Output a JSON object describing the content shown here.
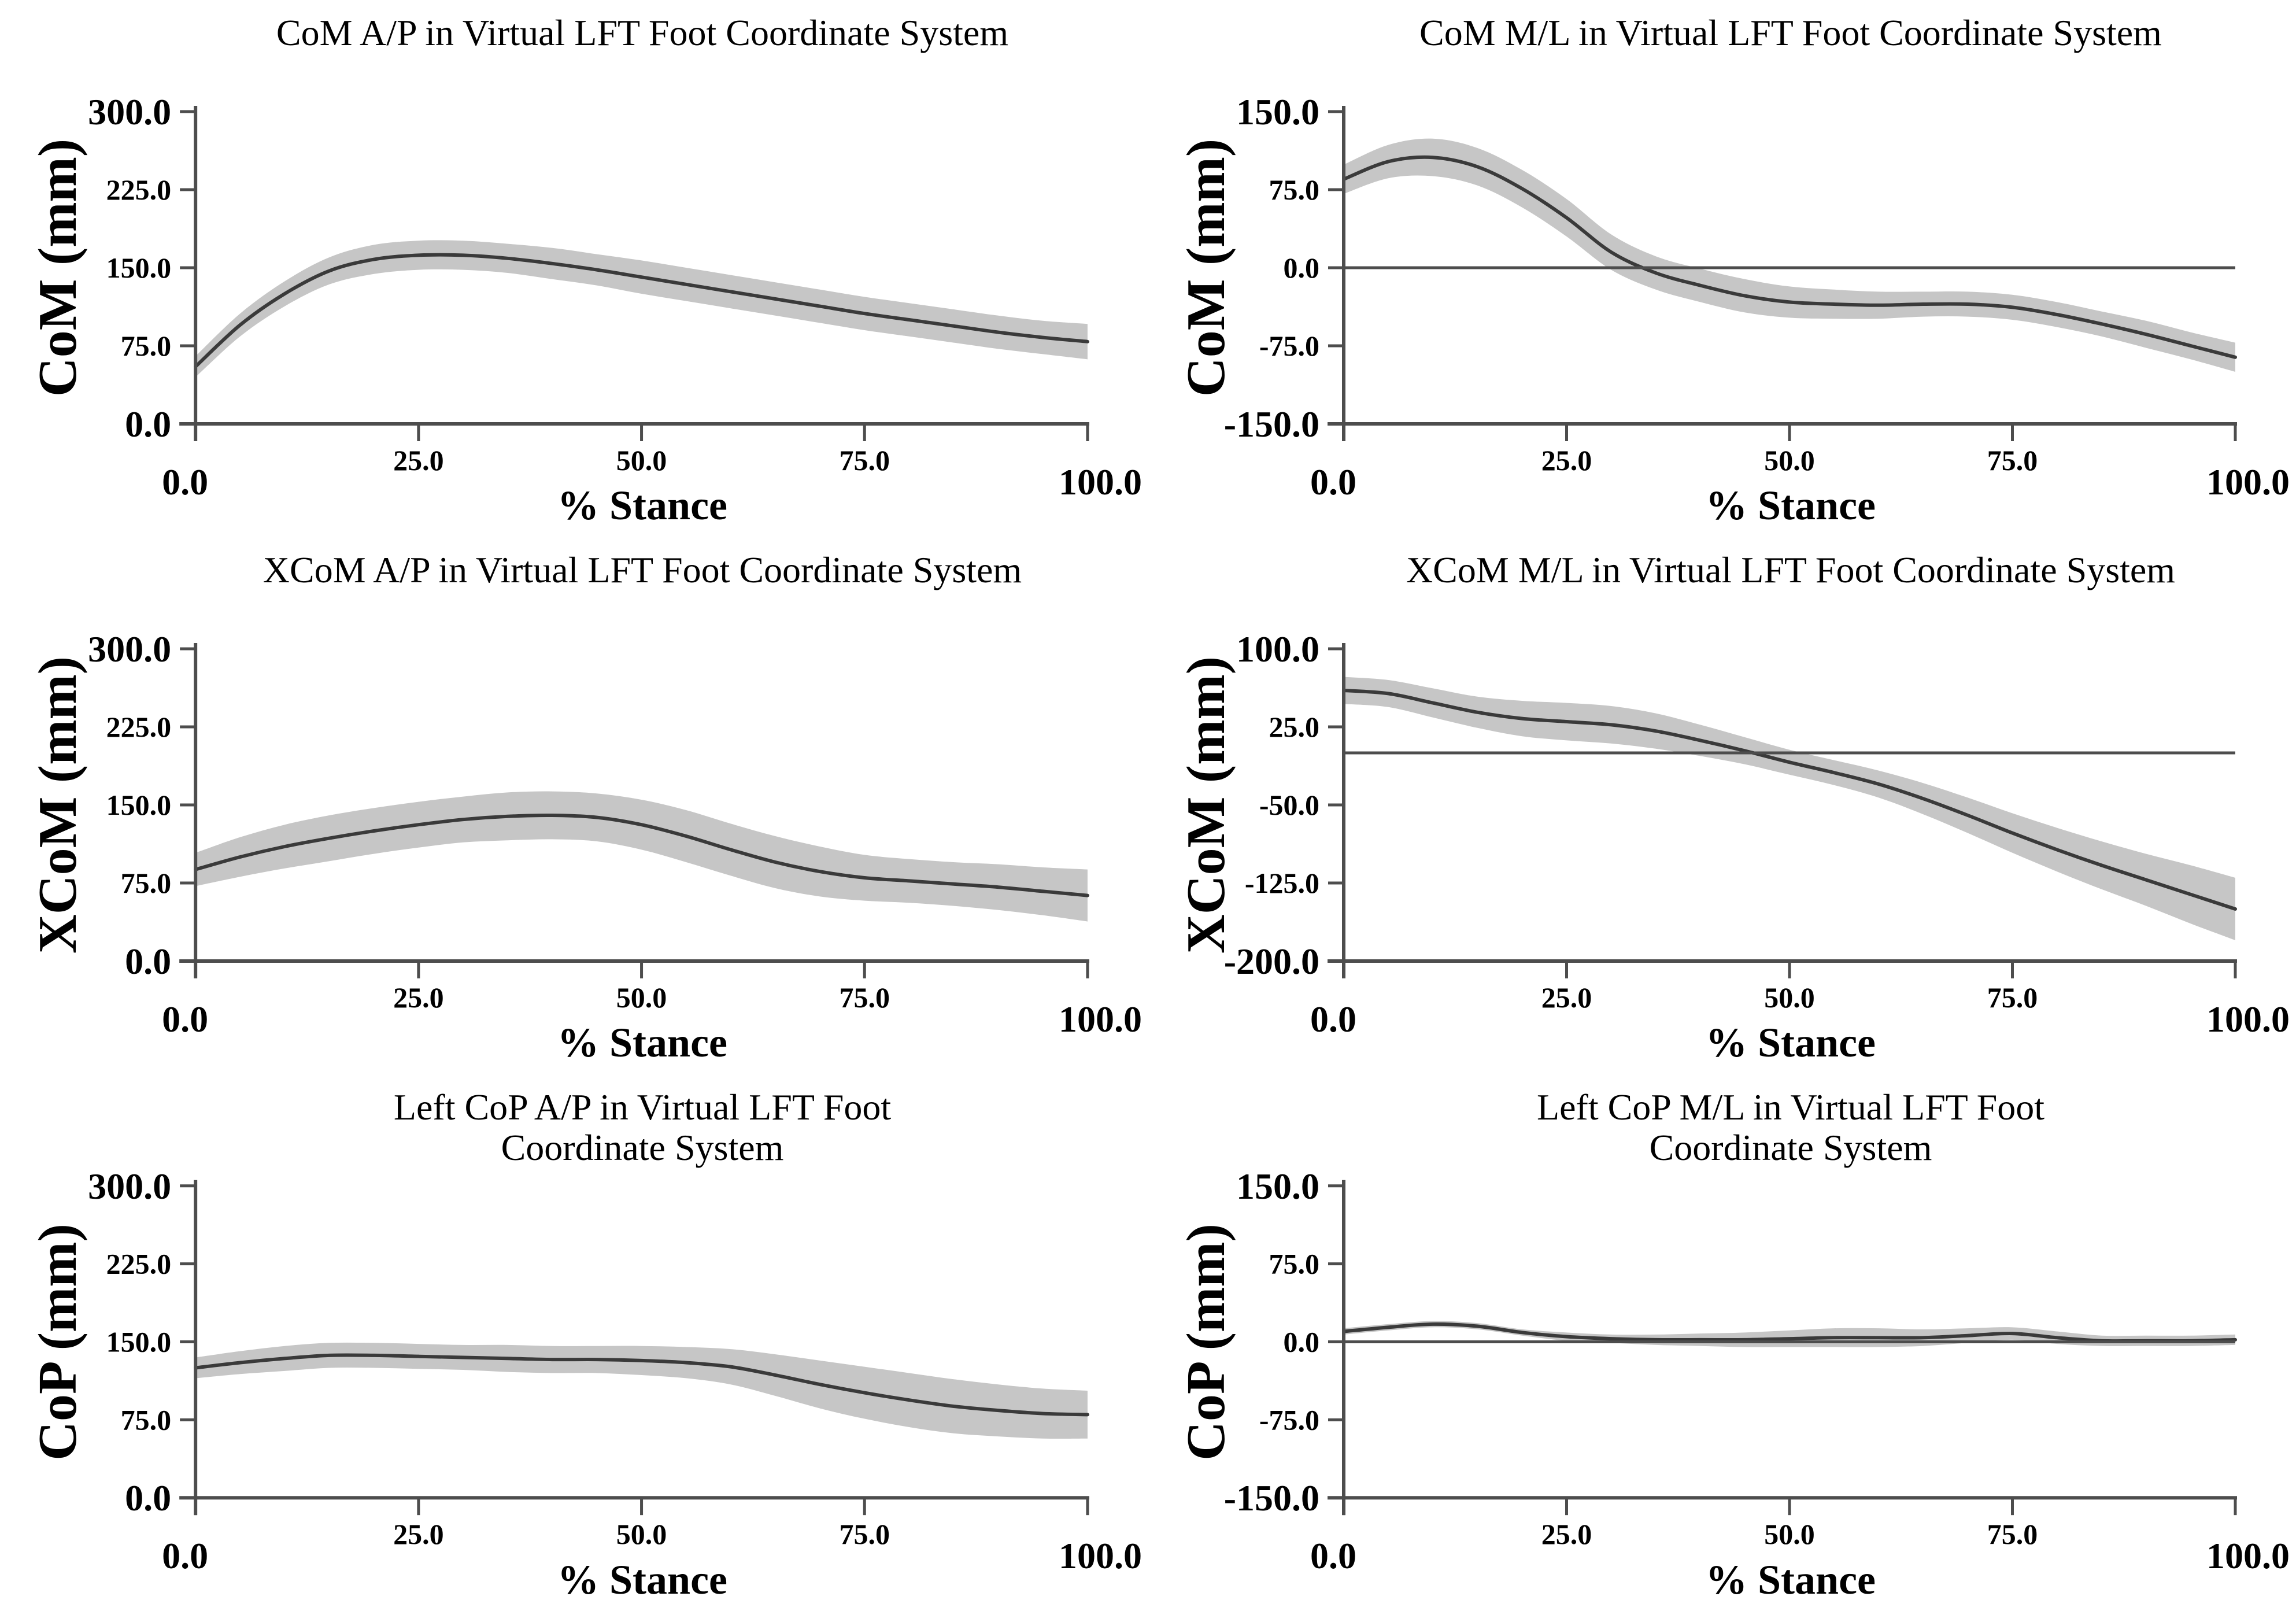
{
  "page": {
    "background": "#ffffff",
    "figure_type": "2x3 grid of stance-phase gait curves with mean line and ±SD band"
  },
  "colors": {
    "band": "#c6c6c6",
    "mean_line": "#3a3a3a",
    "axis": "#4d4d4d",
    "text": "#000000"
  },
  "chart_data": [
    {
      "type": "line",
      "title_lines": [
        "CoM A/P in Virtual LFT Foot Coordinate System"
      ],
      "ylabel": "CoM (mm)",
      "xlabel": "% Stance",
      "xlim": [
        0,
        100
      ],
      "ylim": [
        0,
        300
      ],
      "zero_line": false,
      "legend": "none",
      "grid": false,
      "x": [
        0,
        5,
        10,
        15,
        20,
        25,
        30,
        35,
        40,
        45,
        50,
        55,
        60,
        65,
        70,
        75,
        80,
        85,
        90,
        95,
        100
      ],
      "series": [
        {
          "name": "mean",
          "values": [
            55,
            95,
            125,
            147,
            158,
            162,
            162,
            159,
            154,
            148,
            141,
            134,
            127,
            120,
            113,
            106,
            100,
            94,
            88,
            83,
            79
          ]
        },
        {
          "name": "sd_band_halfwidth",
          "values": [
            10,
            11,
            12,
            13,
            14,
            14,
            14,
            14,
            15,
            15,
            16,
            16,
            16,
            16,
            16,
            16,
            16,
            16,
            16,
            16,
            17
          ]
        }
      ],
      "yticks": [
        {
          "value": 300,
          "label": "300.0"
        },
        {
          "value": 225,
          "label": "225.0"
        },
        {
          "value": 150,
          "label": "150.0"
        },
        {
          "value": 75,
          "label": "75.0"
        },
        {
          "value": 0,
          "label": "0.0"
        }
      ],
      "xticks": [
        {
          "value": 0,
          "label": "0.0"
        },
        {
          "value": 25,
          "label": "25.0"
        },
        {
          "value": 50,
          "label": "50.0"
        },
        {
          "value": 75,
          "label": "75.0"
        },
        {
          "value": 100,
          "label": "100.0"
        }
      ]
    },
    {
      "type": "line",
      "title_lines": [
        "CoM M/L  in Virtual LFT Foot Coordinate System"
      ],
      "ylabel": "CoM (mm)",
      "xlabel": "% Stance",
      "xlim": [
        0,
        100
      ],
      "ylim": [
        -150,
        150
      ],
      "zero_line": true,
      "legend": "none",
      "grid": false,
      "x": [
        0,
        5,
        10,
        15,
        20,
        25,
        30,
        35,
        40,
        45,
        50,
        55,
        60,
        65,
        70,
        75,
        80,
        85,
        90,
        95,
        100
      ],
      "series": [
        {
          "name": "mean",
          "values": [
            85,
            102,
            106,
            97,
            76,
            48,
            15,
            -5,
            -17,
            -27,
            -33,
            -35,
            -36,
            -35,
            -35,
            -38,
            -45,
            -54,
            -64,
            -75,
            -86
          ]
        },
        {
          "name": "sd_band_halfwidth",
          "values": [
            14,
            16,
            18,
            18,
            18,
            18,
            17,
            16,
            16,
            16,
            15,
            14,
            13,
            12,
            12,
            12,
            12,
            12,
            13,
            13,
            14
          ]
        }
      ],
      "yticks": [
        {
          "value": 150,
          "label": "150.0"
        },
        {
          "value": 75,
          "label": "75.0"
        },
        {
          "value": 0,
          "label": "0.0"
        },
        {
          "value": -75,
          "label": "-75.0"
        },
        {
          "value": -150,
          "label": "-150.0"
        }
      ],
      "xticks": [
        {
          "value": 0,
          "label": "0.0"
        },
        {
          "value": 25,
          "label": "25.0"
        },
        {
          "value": 50,
          "label": "50.0"
        },
        {
          "value": 75,
          "label": "75.0"
        },
        {
          "value": 100,
          "label": "100.0"
        }
      ]
    },
    {
      "type": "line",
      "title_lines": [
        "XCoM A/P in Virtual LFT Foot Coordinate System"
      ],
      "ylabel": "XCoM (mm)",
      "xlabel": "% Stance",
      "xlim": [
        0,
        100
      ],
      "ylim": [
        0,
        300
      ],
      "zero_line": false,
      "legend": "none",
      "grid": false,
      "x": [
        0,
        5,
        10,
        15,
        20,
        25,
        30,
        35,
        40,
        45,
        50,
        55,
        60,
        65,
        70,
        75,
        80,
        85,
        90,
        95,
        100
      ],
      "series": [
        {
          "name": "mean",
          "values": [
            88,
            100,
            110,
            118,
            125,
            131,
            136,
            139,
            140,
            138,
            131,
            120,
            107,
            95,
            86,
            80,
            77,
            74,
            71,
            67,
            63
          ]
        },
        {
          "name": "sd_band_halfwidth",
          "values": [
            16,
            19,
            21,
            22,
            22,
            22,
            22,
            23,
            23,
            23,
            24,
            25,
            25,
            25,
            24,
            22,
            21,
            21,
            22,
            23,
            25
          ]
        }
      ],
      "yticks": [
        {
          "value": 300,
          "label": "300.0"
        },
        {
          "value": 225,
          "label": "225.0"
        },
        {
          "value": 150,
          "label": "150.0"
        },
        {
          "value": 75,
          "label": "75.0"
        },
        {
          "value": 0,
          "label": "0.0"
        }
      ],
      "xticks": [
        {
          "value": 0,
          "label": "0.0"
        },
        {
          "value": 25,
          "label": "25.0"
        },
        {
          "value": 50,
          "label": "50.0"
        },
        {
          "value": 75,
          "label": "75.0"
        },
        {
          "value": 100,
          "label": "100.0"
        }
      ]
    },
    {
      "type": "line",
      "title_lines": [
        "XCoM M/L in Virtual LFT Foot Coordinate System"
      ],
      "ylabel": "XCoM (mm)",
      "xlabel": "% Stance",
      "xlim": [
        0,
        100
      ],
      "ylim": [
        -200,
        100
      ],
      "zero_line": true,
      "legend": "none",
      "grid": false,
      "x": [
        0,
        5,
        10,
        15,
        20,
        25,
        30,
        35,
        40,
        45,
        50,
        55,
        60,
        65,
        70,
        75,
        80,
        85,
        90,
        95,
        100
      ],
      "series": [
        {
          "name": "mean",
          "values": [
            60,
            57,
            48,
            39,
            33,
            30,
            27,
            21,
            12,
            2,
            -9,
            -19,
            -30,
            -44,
            -60,
            -77,
            -93,
            -108,
            -122,
            -136,
            -150
          ]
        },
        {
          "name": "sd_band_halfwidth",
          "values": [
            13,
            13,
            14,
            15,
            17,
            18,
            18,
            17,
            15,
            13,
            12,
            12,
            13,
            15,
            17,
            19,
            21,
            23,
            25,
            28,
            30
          ]
        }
      ],
      "yticks": [
        {
          "value": 100,
          "label": "100.0"
        },
        {
          "value": 25,
          "label": "25.0"
        },
        {
          "value": -50,
          "label": "-50.0"
        },
        {
          "value": -125,
          "label": "-125.0"
        },
        {
          "value": -200,
          "label": "-200.0"
        }
      ],
      "xticks": [
        {
          "value": 0,
          "label": "0.0"
        },
        {
          "value": 25,
          "label": "25.0"
        },
        {
          "value": 50,
          "label": "50.0"
        },
        {
          "value": 75,
          "label": "75.0"
        },
        {
          "value": 100,
          "label": "100.0"
        }
      ]
    },
    {
      "type": "line",
      "title_lines": [
        "Left CoP A/P  in Virtual LFT Foot",
        "Coordinate System"
      ],
      "ylabel": "CoP (mm)",
      "xlabel": "% Stance",
      "xlim": [
        0,
        100
      ],
      "ylim": [
        0,
        300
      ],
      "zero_line": false,
      "legend": "none",
      "grid": false,
      "x": [
        0,
        5,
        10,
        15,
        20,
        25,
        30,
        35,
        40,
        45,
        50,
        55,
        60,
        65,
        70,
        75,
        80,
        85,
        90,
        95,
        100
      ],
      "series": [
        {
          "name": "mean",
          "values": [
            125,
            130,
            134,
            137,
            137,
            136,
            135,
            134,
            133,
            133,
            132,
            130,
            126,
            118,
            109,
            101,
            94,
            88,
            84,
            81,
            80
          ]
        },
        {
          "name": "sd_band_halfwidth",
          "values": [
            10,
            11,
            12,
            12,
            12,
            12,
            12,
            13,
            13,
            13,
            14,
            15,
            17,
            20,
            23,
            25,
            26,
            26,
            25,
            24,
            23
          ]
        }
      ],
      "yticks": [
        {
          "value": 300,
          "label": "300.0"
        },
        {
          "value": 225,
          "label": "225.0"
        },
        {
          "value": 150,
          "label": "150.0"
        },
        {
          "value": 75,
          "label": "75.0"
        },
        {
          "value": 0,
          "label": "0.0"
        }
      ],
      "xticks": [
        {
          "value": 0,
          "label": "0.0"
        },
        {
          "value": 25,
          "label": "25.0"
        },
        {
          "value": 50,
          "label": "50.0"
        },
        {
          "value": 75,
          "label": "75.0"
        },
        {
          "value": 100,
          "label": "100.0"
        }
      ]
    },
    {
      "type": "line",
      "title_lines": [
        "Left CoP M/L in Virtual LFT Foot",
        "Coordinate System"
      ],
      "ylabel": "CoP (mm)",
      "xlabel": "% Stance",
      "xlim": [
        0,
        100
      ],
      "ylim": [
        -150,
        150
      ],
      "zero_line": true,
      "legend": "none",
      "grid": false,
      "x": [
        0,
        5,
        10,
        15,
        20,
        25,
        30,
        35,
        40,
        45,
        50,
        55,
        60,
        65,
        70,
        75,
        80,
        85,
        90,
        95,
        100
      ],
      "series": [
        {
          "name": "mean",
          "values": [
            10,
            14,
            17,
            15,
            9,
            5,
            3,
            2,
            2,
            2,
            3,
            4,
            4,
            4,
            6,
            8,
            4,
            1,
            1,
            1,
            2
          ]
        },
        {
          "name": "sd_band_halfwidth",
          "values": [
            3,
            3,
            3,
            3,
            3,
            4,
            4,
            5,
            6,
            7,
            8,
            9,
            9,
            8,
            7,
            6,
            6,
            5,
            5,
            5,
            5
          ]
        }
      ],
      "yticks": [
        {
          "value": 150,
          "label": "150.0"
        },
        {
          "value": 75,
          "label": "75.0"
        },
        {
          "value": 0,
          "label": "0.0"
        },
        {
          "value": -75,
          "label": "-75.0"
        },
        {
          "value": -150,
          "label": "-150.0"
        }
      ],
      "xticks": [
        {
          "value": 0,
          "label": "0.0"
        },
        {
          "value": 25,
          "label": "25.0"
        },
        {
          "value": 50,
          "label": "50.0"
        },
        {
          "value": 75,
          "label": "75.0"
        },
        {
          "value": 100,
          "label": "100.0"
        }
      ]
    }
  ]
}
